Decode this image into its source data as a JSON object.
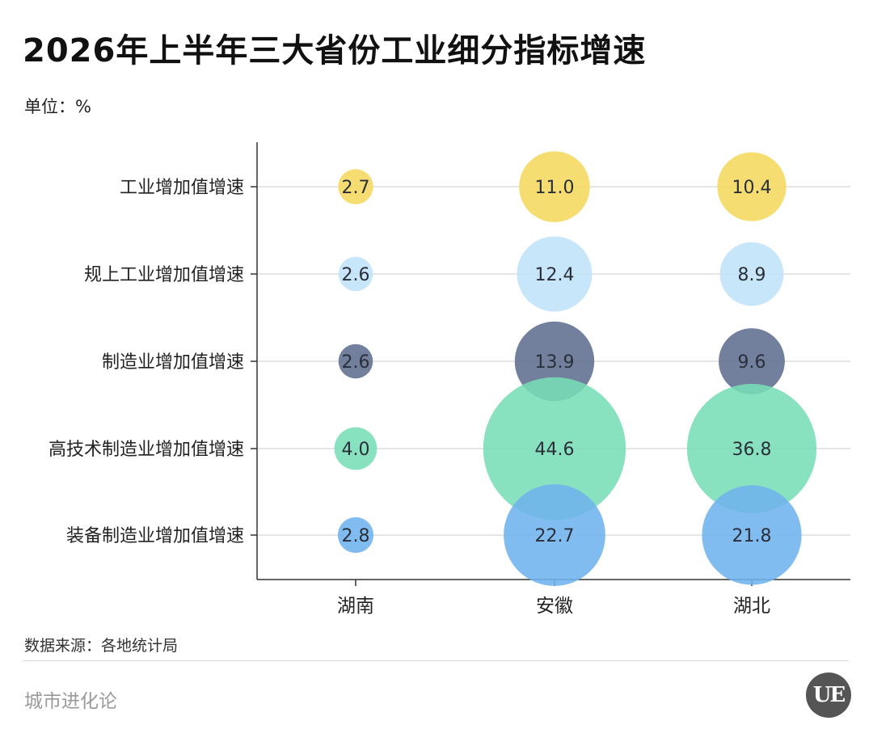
{
  "header": {
    "title": "2026年上半年三大省份工业细分指标增速",
    "unit": "单位：%"
  },
  "footer": {
    "source": "数据来源：各地统计局",
    "brand": "城市进化论",
    "logo_text": "UE"
  },
  "chart_data": {
    "type": "bubble",
    "categories_x": [
      "湖南",
      "安徽",
      "湖北"
    ],
    "categories_y": [
      "工业增加值增速",
      "规上工业增加值增速",
      "制造业增加值增速",
      "高技术制造业增加值增速",
      "装备制造业增加值增速"
    ],
    "row_colors": [
      "#f5d85e",
      "#bfe3f8",
      "#5e6e8f",
      "#77ddb6",
      "#6fb3ee"
    ],
    "values": [
      [
        2.7,
        11.0,
        10.4
      ],
      [
        2.6,
        12.4,
        8.9
      ],
      [
        2.6,
        13.9,
        9.6
      ],
      [
        4.0,
        44.6,
        36.8
      ],
      [
        2.8,
        22.7,
        21.8
      ]
    ],
    "value_labels": [
      [
        "2.7",
        "11.0",
        "10.4"
      ],
      [
        "2.6",
        "12.4",
        "8.9"
      ],
      [
        "2.6",
        "13.9",
        "9.6"
      ],
      [
        "4.0",
        "44.6",
        "36.8"
      ],
      [
        "2.8",
        "22.7",
        "21.8"
      ]
    ],
    "grid": true
  }
}
